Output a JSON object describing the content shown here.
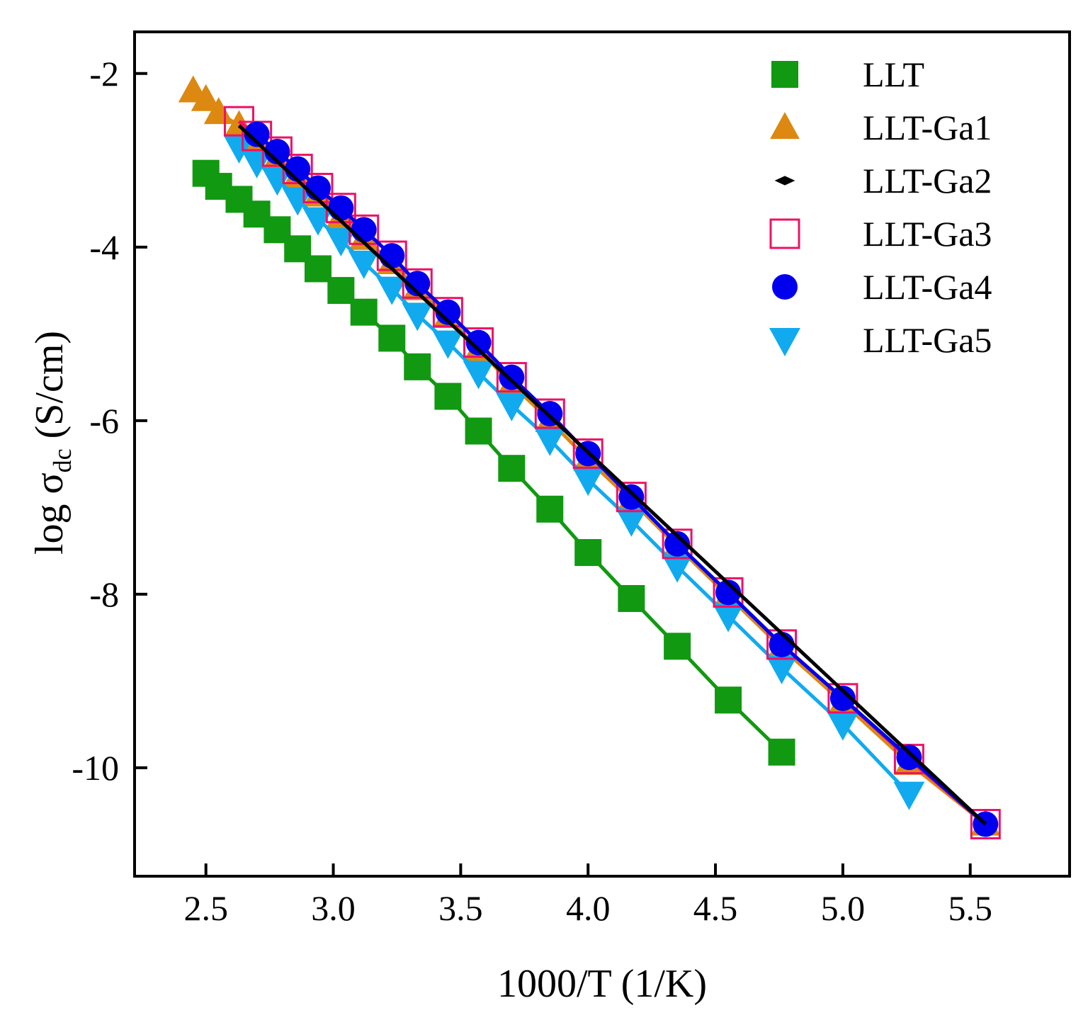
{
  "chart_data": {
    "type": "scatter",
    "xlabel": "1000/T (1/K)",
    "ylabel": {
      "prefix": "log σ",
      "subscript": "dc",
      "suffix": " (S/cm)"
    },
    "xlim": [
      2.22,
      5.89
    ],
    "ylim": [
      -11.25,
      -1.52
    ],
    "xticks": [
      2.5,
      3.0,
      3.5,
      4.0,
      4.5,
      5.0,
      5.5
    ],
    "xtick_labels": [
      "2.5",
      "3.0",
      "3.5",
      "4.0",
      "4.5",
      "5.0",
      "5.5"
    ],
    "yticks": [
      -2,
      -4,
      -6,
      -8,
      -10
    ],
    "ytick_labels": [
      "-2",
      "-4",
      "-6",
      "-8",
      "-10"
    ],
    "grid": false,
    "legend_position": "top-right",
    "series": [
      {
        "name": "LLT",
        "marker": "square-filled",
        "color": "#119911",
        "x": [
          2.5,
          2.55,
          2.63,
          2.7,
          2.78,
          2.86,
          2.94,
          3.03,
          3.12,
          3.23,
          3.33,
          3.45,
          3.57,
          3.7,
          3.85,
          4.0,
          4.17,
          4.35,
          4.55,
          4.76
        ],
        "y": [
          -3.15,
          -3.3,
          -3.45,
          -3.62,
          -3.8,
          -4.02,
          -4.25,
          -4.5,
          -4.75,
          -5.05,
          -5.38,
          -5.72,
          -6.12,
          -6.55,
          -7.02,
          -7.52,
          -8.05,
          -8.6,
          -9.22,
          -9.82
        ]
      },
      {
        "name": "LLT-Ga1",
        "marker": "triangle-up-filled",
        "color": "#dd8811",
        "x": [
          2.45,
          2.5,
          2.55,
          2.63,
          2.7,
          2.78,
          2.86,
          2.94,
          3.03,
          3.12,
          3.23,
          3.33,
          3.45,
          3.57,
          3.7,
          3.85,
          4.0,
          4.17,
          4.35,
          4.55,
          4.76,
          5.0,
          5.26,
          5.56
        ],
        "y": [
          -2.2,
          -2.3,
          -2.45,
          -2.6,
          -2.78,
          -2.98,
          -3.18,
          -3.4,
          -3.65,
          -3.9,
          -4.18,
          -4.48,
          -4.8,
          -5.18,
          -5.58,
          -6.0,
          -6.45,
          -6.92,
          -7.45,
          -8.02,
          -8.62,
          -9.25,
          -9.95,
          -10.65
        ]
      },
      {
        "name": "LLT-Ga2",
        "marker": "diamond-filled",
        "color": "#000000",
        "x": [
          2.63,
          5.56
        ],
        "y": [
          -2.6,
          -10.65
        ]
      },
      {
        "name": "LLT-Ga3",
        "marker": "square-open",
        "color": "#ee1166",
        "x": [
          2.63,
          2.7,
          2.78,
          2.86,
          2.94,
          3.03,
          3.12,
          3.23,
          3.33,
          3.45,
          3.57,
          3.7,
          3.85,
          4.0,
          4.17,
          4.35,
          4.55,
          4.76,
          5.0,
          5.26,
          5.56
        ],
        "y": [
          -2.55,
          -2.72,
          -2.9,
          -3.1,
          -3.32,
          -3.55,
          -3.8,
          -4.1,
          -4.42,
          -4.75,
          -5.1,
          -5.5,
          -5.92,
          -6.38,
          -6.88,
          -7.42,
          -7.98,
          -8.58,
          -9.2,
          -9.9,
          -10.65
        ]
      },
      {
        "name": "LLT-Ga4",
        "marker": "circle-filled",
        "color": "#0000ee",
        "x": [
          2.7,
          2.78,
          2.86,
          2.94,
          3.03,
          3.12,
          3.23,
          3.33,
          3.45,
          3.57,
          3.7,
          3.85,
          4.0,
          4.17,
          4.35,
          4.55,
          4.76,
          5.0,
          5.26,
          5.56
        ],
        "y": [
          -2.7,
          -2.9,
          -3.1,
          -3.32,
          -3.55,
          -3.8,
          -4.1,
          -4.42,
          -4.75,
          -5.1,
          -5.5,
          -5.92,
          -6.38,
          -6.88,
          -7.42,
          -7.98,
          -8.58,
          -9.2,
          -9.88,
          -10.65
        ]
      },
      {
        "name": "LLT-Ga5",
        "marker": "triangle-down-filled",
        "color": "#11aaee",
        "x": [
          2.63,
          2.7,
          2.78,
          2.86,
          2.94,
          3.03,
          3.12,
          3.23,
          3.33,
          3.45,
          3.57,
          3.7,
          3.85,
          4.0,
          4.17,
          4.35,
          4.55,
          4.76,
          5.0,
          5.26
        ],
        "y": [
          -2.85,
          -3.02,
          -3.22,
          -3.45,
          -3.68,
          -3.92,
          -4.18,
          -4.48,
          -4.78,
          -5.1,
          -5.45,
          -5.82,
          -6.22,
          -6.68,
          -7.15,
          -7.68,
          -8.25,
          -8.85,
          -9.5,
          -10.3
        ]
      }
    ]
  }
}
